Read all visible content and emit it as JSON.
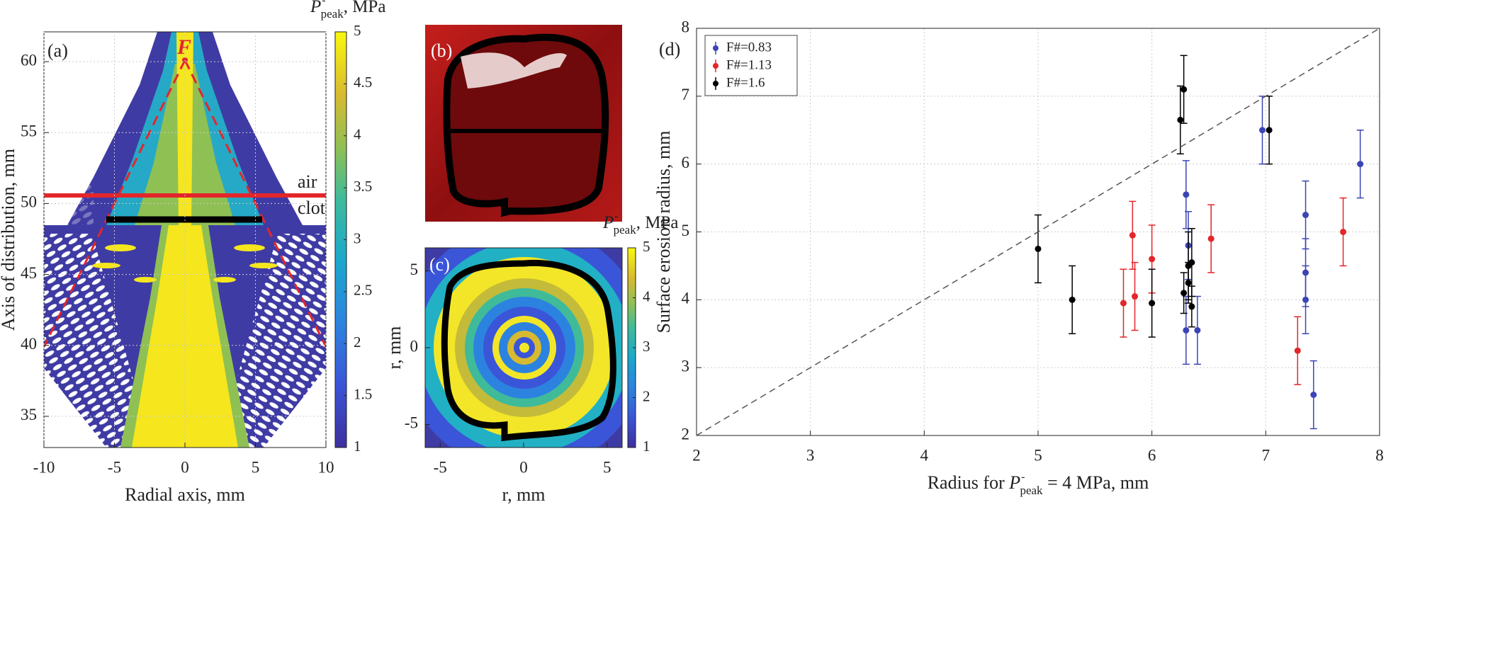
{
  "chart_data": [
    {
      "type": "contour",
      "panel_label": "(a)",
      "x_label": "Radial axis, mm",
      "y_label": "Axis of distribution, mm",
      "xlim": [
        -10,
        10
      ],
      "xticks": [
        -10,
        -5,
        0,
        5,
        10
      ],
      "ylim": [
        32.8,
        62.1
      ],
      "yticks": [
        35,
        40,
        45,
        50,
        55,
        60
      ],
      "grid": true,
      "annotations": [
        "F",
        "air",
        "clot"
      ],
      "colorbar": {
        "label": {
          "symbol": "P",
          "superscript": "-",
          "subscript": "peak",
          "suffix": ", MPa"
        },
        "clim": [
          1,
          5
        ],
        "ticks": [
          1,
          1.5,
          2,
          2.5,
          3,
          3.5,
          4,
          4.5,
          5
        ]
      }
    },
    {
      "type": "image",
      "panel_label": "(b)"
    },
    {
      "type": "contour",
      "panel_label": "(c)",
      "x_label": "r, mm",
      "y_label": "r, mm",
      "xlim": [
        -5.9,
        5.9
      ],
      "xticks": [
        -5,
        0,
        5
      ],
      "ylim": [
        -6.5,
        6.5
      ],
      "yticks": [
        -5,
        0,
        5
      ],
      "grid": false,
      "colorbar": {
        "label": {
          "symbol": "P",
          "superscript": "-",
          "subscript": "peak",
          "suffix": ", MPa"
        },
        "clim": [
          1,
          5
        ],
        "ticks": [
          1,
          2,
          3,
          4,
          5
        ]
      }
    },
    {
      "type": "scatter",
      "panel_label": "(d)",
      "x_label": {
        "prefix": "Radius for ",
        "symbol": "P",
        "superscript": "-",
        "subscript": "peak",
        "suffix": " = 4 MPa, mm"
      },
      "y_label": "Surface erosion radius, mm",
      "xlim": [
        2,
        8
      ],
      "xticks": [
        2,
        3,
        4,
        5,
        6,
        7,
        8
      ],
      "ylim": [
        2,
        8
      ],
      "yticks": [
        2,
        3,
        4,
        5,
        6,
        7,
        8
      ],
      "grid": true,
      "legend": "upper left",
      "series": [
        {
          "name": "F#=0.83",
          "color": "#3b45b5",
          "x": [
            6.3,
            6.32,
            6.3,
            6.4,
            6.97,
            7.35,
            7.35,
            7.35,
            7.42,
            7.83
          ],
          "values": [
            5.55,
            4.8,
            3.55,
            3.55,
            6.5,
            5.25,
            4.4,
            4.0,
            2.6,
            6.0
          ],
          "errors": [
            0.5,
            0.5,
            0.5,
            0.5,
            0.5,
            0.5,
            0.5,
            0.5,
            0.5,
            0.5
          ]
        },
        {
          "name": "F#=1.13",
          "color": "#e3262a",
          "x": [
            5.75,
            5.83,
            5.85,
            6.0,
            6.52,
            7.28,
            7.68
          ],
          "values": [
            3.95,
            4.95,
            4.05,
            4.6,
            4.9,
            3.25,
            5.0
          ],
          "errors": [
            0.5,
            0.5,
            0.5,
            0.5,
            0.5,
            0.5,
            0.5
          ]
        },
        {
          "name": "F#=1.6",
          "color": "#000000",
          "x": [
            5.0,
            5.3,
            6.0,
            6.25,
            6.28,
            6.28,
            6.32,
            6.32,
            6.35,
            6.35,
            7.03
          ],
          "values": [
            4.75,
            4.0,
            3.95,
            6.65,
            7.1,
            4.1,
            4.25,
            4.5,
            4.55,
            3.9,
            6.5
          ],
          "errors": [
            0.5,
            0.5,
            0.5,
            0.5,
            0.5,
            0.3,
            0.3,
            0.5,
            0.5,
            0.3,
            0.5
          ]
        }
      ]
    }
  ]
}
